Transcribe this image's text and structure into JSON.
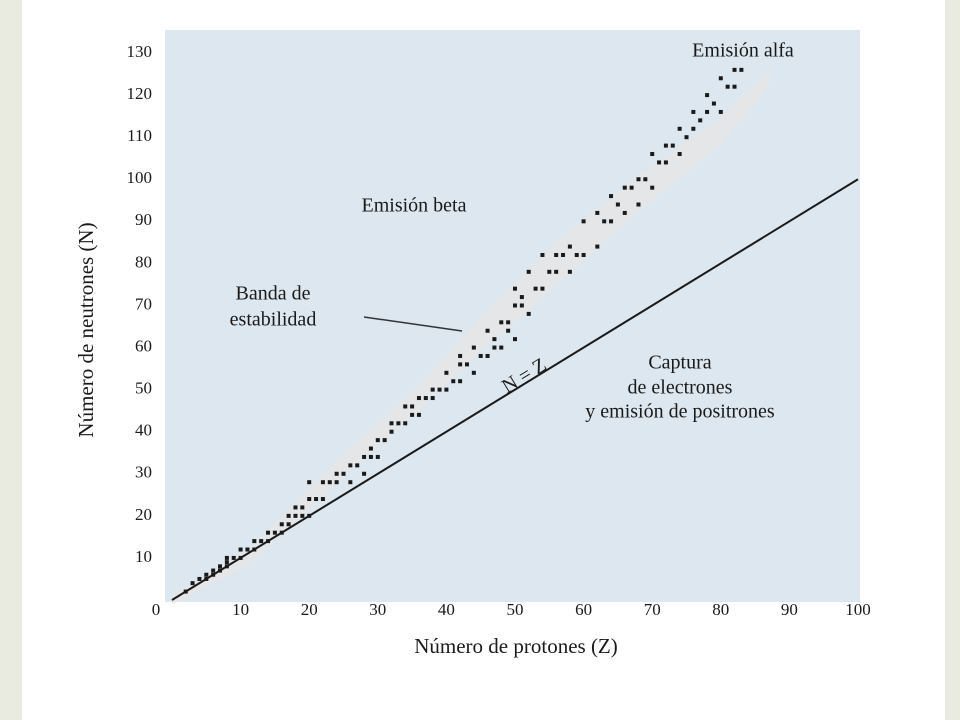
{
  "chart_data": {
    "type": "scatter",
    "x_label": "Número de protones (Z)",
    "y_label": "Número de neutrones (N)",
    "xlim": [
      0,
      100
    ],
    "ylim": [
      0,
      135
    ],
    "xticks": [
      0,
      10,
      20,
      30,
      40,
      50,
      60,
      70,
      80,
      90,
      100
    ],
    "yticks": [
      10,
      20,
      30,
      40,
      50,
      60,
      70,
      80,
      90,
      100,
      110,
      120,
      130
    ],
    "x": [
      2,
      3,
      4,
      5,
      5,
      6,
      6,
      7,
      7,
      8,
      8,
      8,
      9,
      10,
      10,
      11,
      12,
      12,
      13,
      14,
      14,
      15,
      16,
      16,
      17,
      17,
      18,
      18,
      19,
      19,
      20,
      20,
      20,
      21,
      22,
      22,
      23,
      24,
      24,
      25,
      26,
      26,
      27,
      28,
      28,
      29,
      29,
      30,
      30,
      31,
      32,
      32,
      33,
      34,
      34,
      35,
      35,
      36,
      36,
      37,
      38,
      38,
      39,
      40,
      40,
      41,
      42,
      42,
      42,
      43,
      44,
      44,
      45,
      46,
      46,
      47,
      47,
      48,
      48,
      49,
      49,
      50,
      50,
      50,
      51,
      51,
      52,
      52,
      53,
      54,
      54,
      55,
      56,
      56,
      57,
      58,
      58,
      59,
      60,
      60,
      62,
      62,
      63,
      64,
      64,
      65,
      66,
      66,
      67,
      68,
      68,
      69,
      70,
      70,
      71,
      72,
      72,
      73,
      74,
      74,
      75,
      76,
      76,
      77,
      78,
      78,
      79,
      80,
      80,
      81,
      82,
      82,
      83
    ],
    "series": [
      {
        "color": "#1a1a1a",
        "values": [
          2,
          4,
          5,
          5,
          6,
          6,
          7,
          7,
          8,
          8,
          9,
          10,
          10,
          10,
          12,
          12,
          12,
          14,
          14,
          14,
          16,
          16,
          16,
          18,
          18,
          20,
          20,
          22,
          20,
          22,
          20,
          24,
          28,
          24,
          24,
          28,
          28,
          28,
          30,
          30,
          28,
          32,
          32,
          30,
          34,
          34,
          36,
          34,
          38,
          38,
          40,
          42,
          42,
          42,
          46,
          44,
          46,
          44,
          48,
          48,
          48,
          50,
          50,
          50,
          54,
          52,
          52,
          56,
          58,
          56,
          54,
          60,
          58,
          58,
          64,
          60,
          62,
          60,
          66,
          64,
          66,
          62,
          70,
          74,
          70,
          72,
          68,
          78,
          74,
          74,
          82,
          78,
          78,
          82,
          82,
          78,
          84,
          82,
          82,
          90,
          84,
          92,
          90,
          90,
          96,
          94,
          92,
          98,
          98,
          94,
          100,
          100,
          98,
          106,
          104,
          104,
          108,
          108,
          106,
          112,
          110,
          112,
          116,
          114,
          116,
          120,
          118,
          116,
          124,
          122,
          122,
          126,
          126
        ]
      }
    ],
    "reference_line": {
      "label": "N = Z",
      "x": [
        0,
        100
      ],
      "y": [
        0,
        100
      ]
    },
    "annotations": {
      "alpha": "Emisión alfa",
      "beta": "Emisión beta",
      "band": [
        "Banda de",
        "estabilidad"
      ],
      "capture": [
        "Captura",
        "de electrones",
        "y emisión de positrones"
      ]
    }
  }
}
